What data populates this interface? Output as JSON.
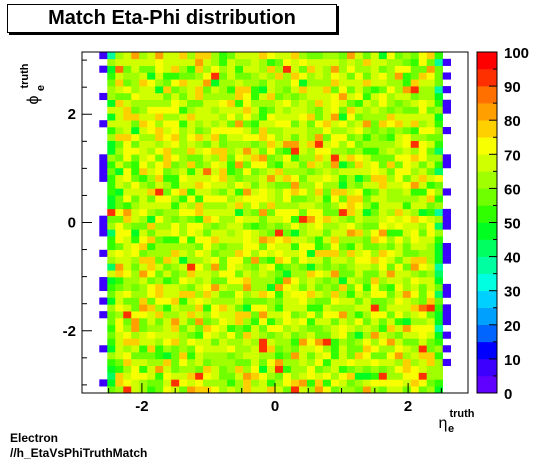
{
  "title": "Match Eta-Phi distribution",
  "footer": {
    "line1": "Electron",
    "line2": "//h_EtaVsPhiTruthMatch"
  },
  "chart_data": {
    "type": "heatmap",
    "title": "Match Eta-Phi distribution",
    "xlabel": {
      "base": "η",
      "sup": "truth",
      "sub": "e"
    },
    "ylabel": {
      "base": "ϕ",
      "sup": "truth",
      "sub": "e"
    },
    "xlim": [
      -2.9,
      2.9
    ],
    "ylim": [
      -3.15,
      3.15
    ],
    "x_ticks": [
      -2,
      0,
      2
    ],
    "y_ticks": [
      -2,
      0,
      2
    ],
    "z_range": [
      0,
      100
    ],
    "colorbar_ticks": [
      0,
      10,
      20,
      30,
      40,
      50,
      60,
      70,
      80,
      90,
      100
    ],
    "grid": false,
    "palette": [
      "#6000ff",
      "#3c00ff",
      "#0000ff",
      "#0064ff",
      "#00a0ff",
      "#00d0ff",
      "#00ffe0",
      "#00ffa0",
      "#00ff60",
      "#00ff20",
      "#30ff00",
      "#70ff00",
      "#a0ff00",
      "#d0ff00",
      "#f8ff00",
      "#ffd000",
      "#ffa000",
      "#ff7000",
      "#ff3000",
      "#ff0000"
    ],
    "cells_description": "Uniform occupancy for |eta| < 2.5 with bin contents ~50-80; sparse low bins (~5) at the eta edges",
    "bins": {
      "nx": 48,
      "ny": 50,
      "x_edges": [
        -2.88,
        2.88
      ],
      "y_edges": [
        -3.15,
        3.15
      ]
    },
    "core_eta_range": [
      -2.5,
      2.5
    ],
    "core_mean": 66,
    "core_spread": 14,
    "edge_value": 5
  }
}
